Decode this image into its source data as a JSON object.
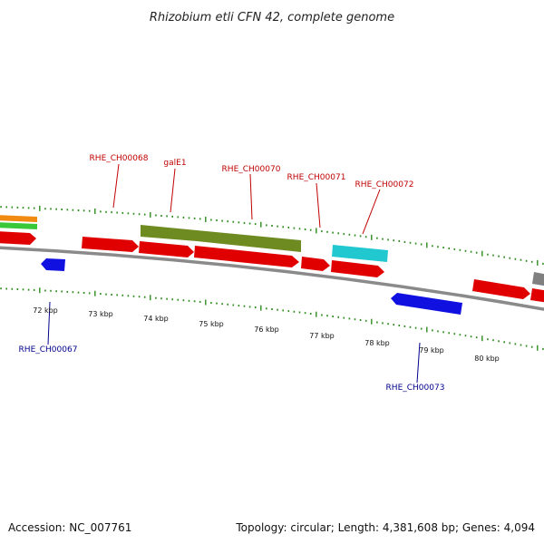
{
  "title": "Rhizobium etli CFN 42, complete genome",
  "footer": {
    "accession": "Accession: NC_007761",
    "summary": "Topology: circular; Length: 4,381,608 bp; Genes: 4,094"
  },
  "colors": {
    "backbone": "#8a8a8a",
    "tick": "#2e8b1e",
    "forward_cds": "#e00000",
    "reverse_cds": "#1010e0",
    "olive": "#6e8b22",
    "cyan": "#22c8d0",
    "orange": "#f08a10",
    "green": "#38c838",
    "grey": "#808080",
    "label_forward": "#c00000",
    "label_reverse": "#00008b"
  },
  "scale_labels": [
    "72 kbp",
    "73 kbp",
    "74 kbp",
    "75 kbp",
    "76 kbp",
    "77 kbp",
    "78 kbp",
    "79 kbp",
    "80 kbp"
  ],
  "gene_labels": [
    {
      "text": "RHE_CH00068",
      "strand": "forward"
    },
    {
      "text": "galE1",
      "strand": "forward"
    },
    {
      "text": "RHE_CH00070",
      "strand": "forward"
    },
    {
      "text": "RHE_CH00071",
      "strand": "forward"
    },
    {
      "text": "RHE_CH00072",
      "strand": "forward"
    },
    {
      "text": "RHE_CH00067",
      "strand": "reverse"
    },
    {
      "text": "RHE_CH00073",
      "strand": "reverse"
    }
  ]
}
